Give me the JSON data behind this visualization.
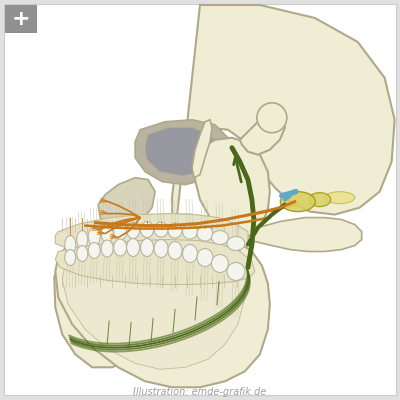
{
  "bg_outer": "#e0e0e0",
  "bg_inner": "#ffffff",
  "skull_fill": "#f0edd5",
  "skull_stroke": "#b0a888",
  "skull_stroke2": "#9a9278",
  "orbit_fill": "#c8c4a8",
  "orbit_dark": "#a0a098",
  "nasal_fill": "#d8d4bc",
  "tooth_fill": "#f5f5f0",
  "tooth_stroke": "#b8b4a0",
  "root_color": "#d0ccb8",
  "alveolar_fill": "#e8e4cc",
  "nerve_orange": "#c87818",
  "nerve_orange2": "#d48820",
  "nerve_green": "#4a6818",
  "nerve_green2": "#607830",
  "nerve_yellow": "#d8cc50",
  "nerve_yellow2": "#e8dc70",
  "nerve_blue": "#60a8c8",
  "ganglion_fill": "#d8d060",
  "plus_bg": "#909090",
  "plus_fg": "#ffffff",
  "caption": "Illustration: emde-grafik.de",
  "caption_color": "#a0a0a0"
}
